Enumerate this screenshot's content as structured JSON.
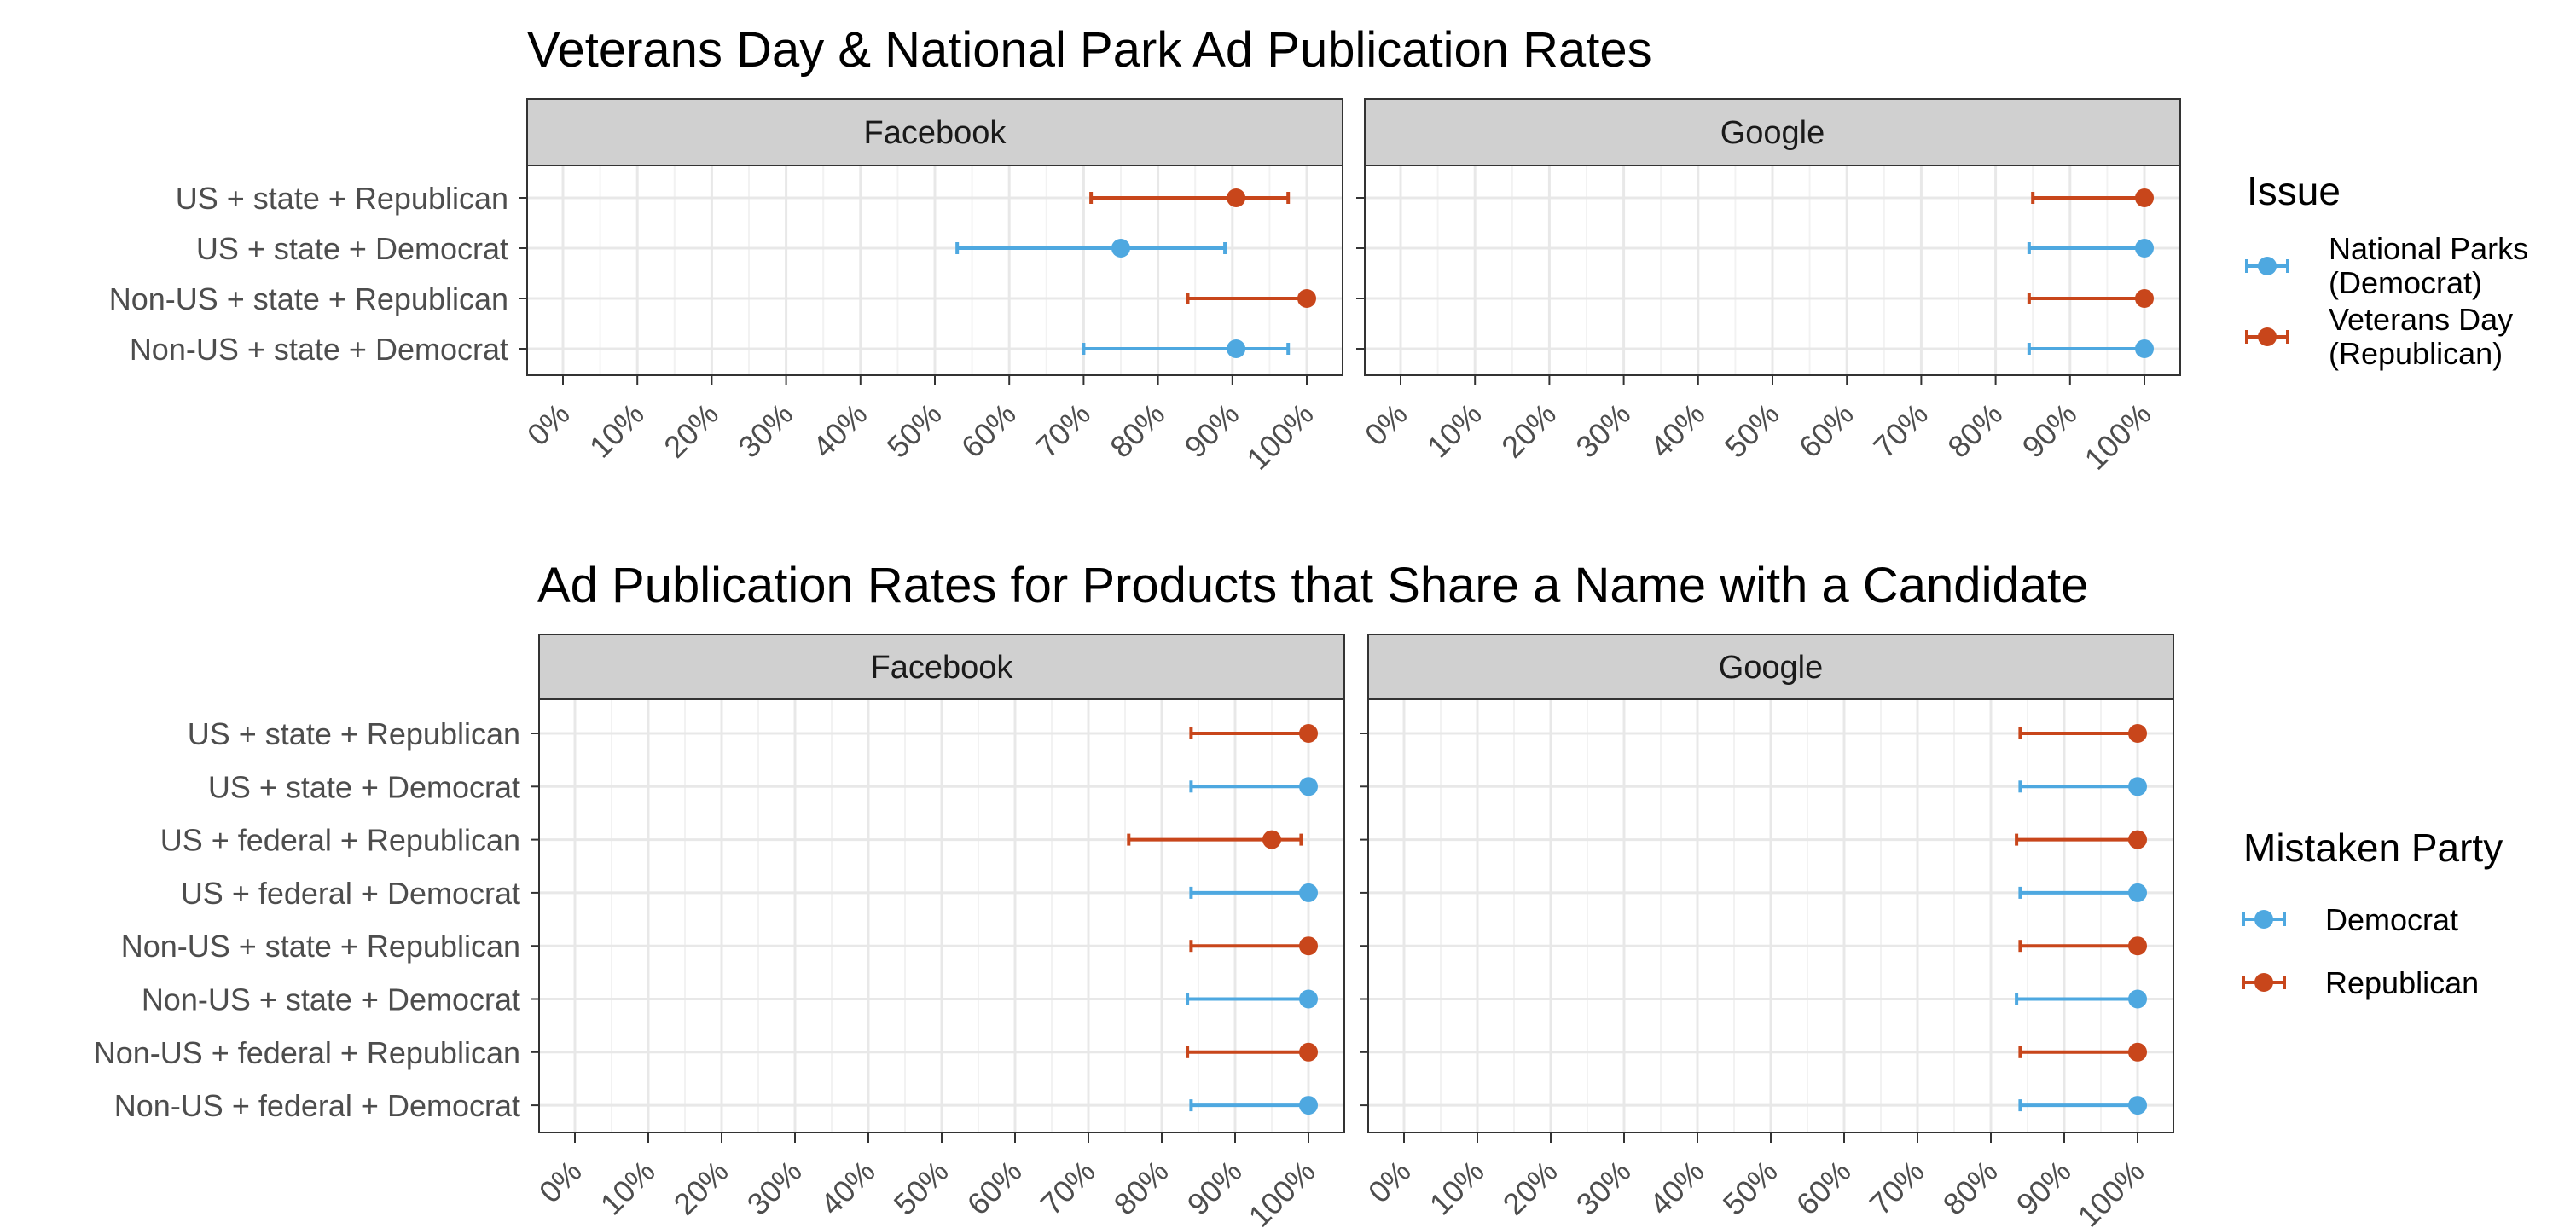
{
  "colors": {
    "democrat": "#4ea8e0",
    "republican": "#c8461b",
    "strip_fill": "#d0d0d0",
    "grid": "#e8e8e8"
  },
  "chart_data": [
    {
      "type": "dot-errorbar",
      "title": "Veterans Day & National Park Ad Publication Rates",
      "x_ticks": [
        "0%",
        "10%",
        "20%",
        "30%",
        "40%",
        "50%",
        "60%",
        "70%",
        "80%",
        "90%",
        "100%"
      ],
      "xlim": [
        0,
        100
      ],
      "grid": true,
      "legend": {
        "title": "Issue",
        "placement": "right",
        "entries": [
          {
            "key": "democrat",
            "lines": [
              "National Parks",
              "(Democrat)"
            ]
          },
          {
            "key": "republican",
            "lines": [
              "Veterans Day",
              "(Republican)"
            ]
          }
        ]
      },
      "rows": [
        {
          "label": "US + state + Republican",
          "party": "republican"
        },
        {
          "label": "US + state + Democrat",
          "party": "democrat"
        },
        {
          "label": "Non-US + state + Republican",
          "party": "republican"
        },
        {
          "label": "Non-US + state + Democrat",
          "party": "democrat"
        }
      ],
      "panels": [
        {
          "name": "Facebook",
          "values": [
            {
              "est": 90.5,
              "lo": 71,
              "hi": 97.5
            },
            {
              "est": 75,
              "lo": 53,
              "hi": 89
            },
            {
              "est": 100,
              "lo": 84,
              "hi": 100
            },
            {
              "est": 90.5,
              "lo": 70,
              "hi": 97.5
            }
          ]
        },
        {
          "name": "Google",
          "values": [
            {
              "est": 100,
              "lo": 85,
              "hi": 100
            },
            {
              "est": 100,
              "lo": 84.5,
              "hi": 100
            },
            {
              "est": 100,
              "lo": 84.5,
              "hi": 100
            },
            {
              "est": 100,
              "lo": 84.5,
              "hi": 100
            }
          ]
        }
      ]
    },
    {
      "type": "dot-errorbar",
      "title": "Ad Publication Rates for Products that Share a Name with a Candidate",
      "x_ticks": [
        "0%",
        "10%",
        "20%",
        "30%",
        "40%",
        "50%",
        "60%",
        "70%",
        "80%",
        "90%",
        "100%"
      ],
      "xlim": [
        0,
        100
      ],
      "grid": true,
      "legend": {
        "title": "Mistaken Party",
        "placement": "right",
        "entries": [
          {
            "key": "democrat",
            "lines": [
              "Democrat"
            ]
          },
          {
            "key": "republican",
            "lines": [
              "Republican"
            ]
          }
        ]
      },
      "rows": [
        {
          "label": "US + state + Republican",
          "party": "republican"
        },
        {
          "label": "US + state + Democrat",
          "party": "democrat"
        },
        {
          "label": "US + federal + Republican",
          "party": "republican"
        },
        {
          "label": "US + federal + Democrat",
          "party": "democrat"
        },
        {
          "label": "Non-US + state + Republican",
          "party": "republican"
        },
        {
          "label": "Non-US + state + Democrat",
          "party": "democrat"
        },
        {
          "label": "Non-US + federal + Republican",
          "party": "republican"
        },
        {
          "label": "Non-US + federal + Democrat",
          "party": "democrat"
        }
      ],
      "panels": [
        {
          "name": "Facebook",
          "values": [
            {
              "est": 100,
              "lo": 84,
              "hi": 100
            },
            {
              "est": 100,
              "lo": 84,
              "hi": 100
            },
            {
              "est": 95,
              "lo": 75.5,
              "hi": 99
            },
            {
              "est": 100,
              "lo": 84,
              "hi": 100
            },
            {
              "est": 100,
              "lo": 84,
              "hi": 100
            },
            {
              "est": 100,
              "lo": 83.5,
              "hi": 100
            },
            {
              "est": 100,
              "lo": 83.5,
              "hi": 100
            },
            {
              "est": 100,
              "lo": 84,
              "hi": 100
            }
          ]
        },
        {
          "name": "Google",
          "values": [
            {
              "est": 100,
              "lo": 84,
              "hi": 100
            },
            {
              "est": 100,
              "lo": 84,
              "hi": 100
            },
            {
              "est": 100,
              "lo": 83.5,
              "hi": 100
            },
            {
              "est": 100,
              "lo": 84,
              "hi": 100
            },
            {
              "est": 100,
              "lo": 84,
              "hi": 100
            },
            {
              "est": 100,
              "lo": 83.5,
              "hi": 100
            },
            {
              "est": 100,
              "lo": 84,
              "hi": 100
            },
            {
              "est": 100,
              "lo": 84,
              "hi": 100
            }
          ]
        }
      ]
    }
  ]
}
